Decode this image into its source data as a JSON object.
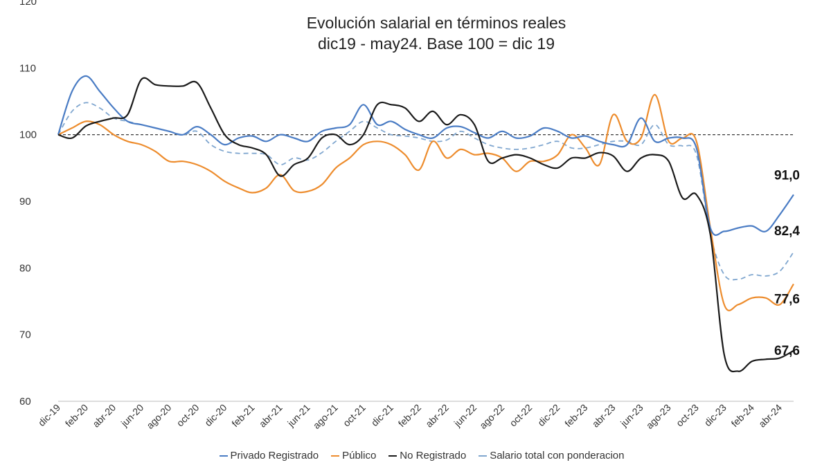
{
  "chart_data": {
    "type": "line",
    "title_line1": "Evolución salarial en términos reales",
    "title_line2": "dic19 - may24. Base 100 = dic 19",
    "ylim": [
      60,
      120
    ],
    "yticks": [
      "60",
      "70",
      "80",
      "90",
      "100",
      "110",
      "120"
    ],
    "reference_line": 100,
    "x": [
      "dic-19",
      "ene-20",
      "feb-20",
      "mar-20",
      "abr-20",
      "may-20",
      "jun-20",
      "jul-20",
      "ago-20",
      "sep-20",
      "oct-20",
      "nov-20",
      "dic-20",
      "ene-21",
      "feb-21",
      "mar-21",
      "abr-21",
      "may-21",
      "jun-21",
      "jul-21",
      "ago-21",
      "sep-21",
      "oct-21",
      "nov-21",
      "dic-21",
      "ene-22",
      "feb-22",
      "mar-22",
      "abr-22",
      "may-22",
      "jun-22",
      "jul-22",
      "ago-22",
      "sep-22",
      "oct-22",
      "nov-22",
      "dic-22",
      "ene-23",
      "feb-23",
      "mar-23",
      "abr-23",
      "may-23",
      "jun-23",
      "jul-23",
      "ago-23",
      "sep-23",
      "oct-23",
      "nov-23",
      "dic-23",
      "ene-24",
      "feb-24",
      "mar-24",
      "abr-24",
      "may-24"
    ],
    "xtick_labels": [
      "dic-19",
      "feb-20",
      "abr-20",
      "jun-20",
      "ago-20",
      "oct-20",
      "dic-20",
      "feb-21",
      "abr-21",
      "jun-21",
      "ago-21",
      "oct-21",
      "dic-21",
      "feb-22",
      "abr-22",
      "jun-22",
      "ago-22",
      "oct-22",
      "dic-22",
      "feb-23",
      "abr-23",
      "jun-23",
      "ago-23",
      "oct-23",
      "dic-23",
      "feb-24",
      "abr-24"
    ],
    "series": [
      {
        "name": "Privado Registrado",
        "color": "#4a7cc4",
        "dashed": false,
        "values": [
          100,
          106.5,
          108.8,
          106.5,
          104,
          102,
          101.5,
          101,
          100.5,
          100,
          101.2,
          100,
          98.5,
          99.5,
          99.8,
          99,
          100,
          99.5,
          99,
          100.5,
          101,
          101.5,
          104.5,
          101.5,
          102,
          100.8,
          100,
          99.5,
          101,
          101.2,
          100.3,
          99.5,
          100.5,
          99.5,
          99.8,
          101,
          100.5,
          99.5,
          99.8,
          99,
          98.5,
          98.5,
          102.5,
          99,
          99.5,
          99.5,
          98,
          86,
          85.5,
          86,
          86.3,
          85.5,
          88,
          91
        ]
      },
      {
        "name": "Público",
        "color": "#ed8c2d",
        "dashed": false,
        "values": [
          100,
          101,
          102,
          101.5,
          100,
          99,
          98.5,
          97.5,
          96,
          96,
          95.5,
          94.5,
          93,
          92,
          91.3,
          92,
          94,
          91.6,
          91.5,
          92.5,
          95,
          96.5,
          98.5,
          99,
          98.5,
          97,
          94.7,
          99,
          96.5,
          97.8,
          97,
          97.2,
          96.5,
          94.5,
          96,
          96,
          97,
          100,
          98,
          95.5,
          103,
          99,
          99.5,
          106,
          99,
          99.5,
          99,
          86,
          74.5,
          74.5,
          75.5,
          75.5,
          74.5,
          77.6
        ]
      },
      {
        "name": "No Registrado",
        "color": "#1a1a1a",
        "dashed": false,
        "values": [
          100,
          99.5,
          101.3,
          102,
          102.5,
          103,
          108.3,
          107.5,
          107.3,
          107.3,
          107.8,
          104,
          100,
          98.5,
          98,
          97,
          93.8,
          95.5,
          96.5,
          99.5,
          100,
          98.5,
          100,
          104.5,
          104.5,
          104,
          102,
          103.5,
          101.5,
          103,
          101.5,
          96,
          96.5,
          97,
          96.5,
          95.5,
          95,
          96.5,
          96.5,
          97.3,
          96.8,
          94.5,
          96.5,
          97,
          96,
          90.5,
          91,
          85,
          67,
          64.5,
          66,
          66.3,
          66.5,
          67.6
        ]
      },
      {
        "name": "Salario total con ponderacion",
        "color": "#7fa6cf",
        "dashed": true,
        "values": [
          100,
          103.5,
          104.8,
          104,
          102.5,
          102,
          101.5,
          101,
          100.5,
          100,
          100.5,
          98.5,
          97.5,
          97.2,
          97.2,
          97,
          95.5,
          96.5,
          96.2,
          97.3,
          99,
          100.5,
          102,
          101,
          100,
          99.8,
          99.5,
          99,
          99.2,
          100.5,
          99.5,
          98.5,
          98,
          97.8,
          98,
          98.5,
          99,
          98,
          98,
          98.5,
          99,
          99,
          98.5,
          101.5,
          98.5,
          98.3,
          97,
          85,
          79,
          78.3,
          79,
          78.8,
          79.5,
          82.4
        ]
      }
    ],
    "end_labels": [
      "91,0",
      "82,4",
      "77,6",
      "67,6"
    ],
    "legend_position": "bottom"
  }
}
